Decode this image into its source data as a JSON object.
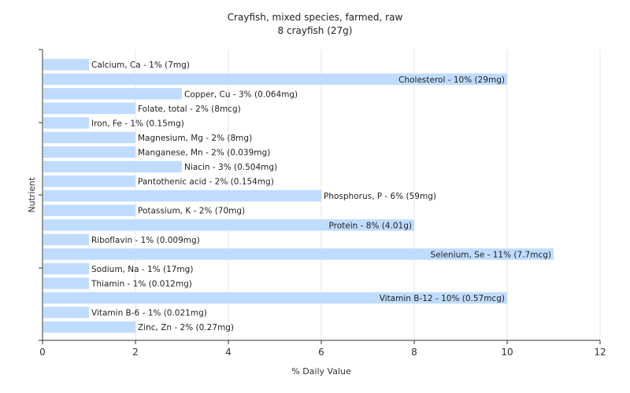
{
  "chart_data": {
    "type": "bar",
    "orientation": "horizontal",
    "title": "Crayfish, mixed species, farmed, raw",
    "subtitle": "8 crayfish (27g)",
    "xlabel": "% Daily Value",
    "ylabel": "Nutrient",
    "xlim": [
      0,
      12
    ],
    "xticks": [
      "0",
      "2",
      "4",
      "6",
      "8",
      "10",
      "12"
    ],
    "grid": "vertical",
    "bar_color": "#bfdcff",
    "categories": [
      "Calcium, Ca",
      "Cholesterol",
      "Copper, Cu",
      "Folate, total",
      "Iron, Fe",
      "Magnesium, Mg",
      "Manganese, Mn",
      "Niacin",
      "Pantothenic acid",
      "Phosphorus, P",
      "Potassium, K",
      "Protein",
      "Riboflavin",
      "Selenium, Se",
      "Sodium, Na",
      "Thiamin",
      "Vitamin B-12",
      "Vitamin B-6",
      "Zinc, Zn"
    ],
    "values": [
      1,
      10,
      3,
      2,
      1,
      2,
      2,
      3,
      2,
      6,
      2,
      8,
      1,
      11,
      1,
      1,
      10,
      1,
      2
    ],
    "labels": [
      "Calcium, Ca - 1% (7mg)",
      "Cholesterol - 10% (29mg)",
      "Copper, Cu - 3% (0.064mg)",
      "Folate, total - 2% (8mcg)",
      "Iron, Fe - 1% (0.15mg)",
      "Magnesium, Mg - 2% (8mg)",
      "Manganese, Mn - 2% (0.039mg)",
      "Niacin - 3% (0.504mg)",
      "Pantothenic acid - 2% (0.154mg)",
      "Phosphorus, P - 6% (59mg)",
      "Potassium, K - 2% (70mg)",
      "Protein - 8% (4.01g)",
      "Riboflavin - 1% (0.009mg)",
      "Selenium, Se - 11% (7.7mcg)",
      "Sodium, Na - 1% (17mg)",
      "Thiamin - 1% (0.012mg)",
      "Vitamin B-12 - 10% (0.57mcg)",
      "Vitamin B-6 - 1% (0.021mg)",
      "Zinc, Zn - 2% (0.27mg)"
    ]
  }
}
